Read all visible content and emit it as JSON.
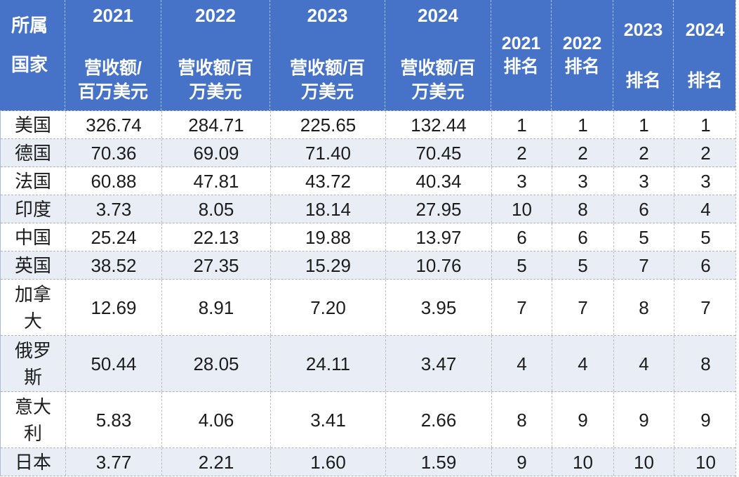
{
  "colors": {
    "header_bg": "#4673c8",
    "header_text": "#ffffff",
    "band_row_bg": "#e9edf6",
    "row_bg": "#ffffff",
    "body_text": "#1c1c1c",
    "grid_border": "#b3b3b3"
  },
  "table": {
    "header": {
      "country_label": "所属\n国家",
      "revenue_columns": [
        {
          "year": "2021",
          "unit": "营收额/\n百万美元"
        },
        {
          "year": "2022",
          "unit": "营收额/百\n万美元"
        },
        {
          "year": "2023",
          "unit": "营收额/百\n万美元"
        },
        {
          "year": "2024",
          "unit": "营收额/百\n万美元"
        }
      ],
      "rank_columns": [
        {
          "year": "2021",
          "label": "排名"
        },
        {
          "year": "2022",
          "label": "排名"
        },
        {
          "year": "2023",
          "label": "排名"
        },
        {
          "year": "2024",
          "label": "排名"
        }
      ]
    },
    "rows": [
      {
        "country": "美国",
        "revenue": [
          "326.74",
          "284.71",
          "225.65",
          "132.44"
        ],
        "rank": [
          "1",
          "1",
          "1",
          "1"
        ],
        "tall": false
      },
      {
        "country": "德国",
        "revenue": [
          "70.36",
          "69.09",
          "71.40",
          "70.45"
        ],
        "rank": [
          "2",
          "2",
          "2",
          "2"
        ],
        "tall": false
      },
      {
        "country": "法国",
        "revenue": [
          "60.88",
          "47.81",
          "43.72",
          "40.34"
        ],
        "rank": [
          "3",
          "3",
          "3",
          "3"
        ],
        "tall": false
      },
      {
        "country": "印度",
        "revenue": [
          "3.73",
          "8.05",
          "18.14",
          "27.95"
        ],
        "rank": [
          "10",
          "8",
          "6",
          "4"
        ],
        "tall": false
      },
      {
        "country": "中国",
        "revenue": [
          "25.24",
          "22.13",
          "19.88",
          "13.97"
        ],
        "rank": [
          "6",
          "6",
          "5",
          "5"
        ],
        "tall": false
      },
      {
        "country": "英国",
        "revenue": [
          "38.52",
          "27.35",
          "15.29",
          "10.76"
        ],
        "rank": [
          "5",
          "5",
          "7",
          "6"
        ],
        "tall": false
      },
      {
        "country": "加拿\n大",
        "revenue": [
          "12.69",
          "8.91",
          "7.20",
          "3.95"
        ],
        "rank": [
          "7",
          "7",
          "8",
          "7"
        ],
        "tall": true
      },
      {
        "country": "俄罗\n斯",
        "revenue": [
          "50.44",
          "28.05",
          "24.11",
          "3.47"
        ],
        "rank": [
          "4",
          "4",
          "4",
          "8"
        ],
        "tall": true
      },
      {
        "country": "意大\n利",
        "revenue": [
          "5.83",
          "4.06",
          "3.41",
          "2.66"
        ],
        "rank": [
          "8",
          "9",
          "9",
          "9"
        ],
        "tall": true
      },
      {
        "country": "日本",
        "revenue": [
          "3.77",
          "2.21",
          "1.60",
          "1.59"
        ],
        "rank": [
          "9",
          "10",
          "10",
          "10"
        ],
        "tall": false
      }
    ]
  },
  "chart_data": {
    "type": "table",
    "title": "",
    "columns": [
      "所属国家",
      "2021 营收额/百万美元",
      "2022 营收额/百万美元",
      "2023 营收额/百万美元",
      "2024 营收额/百万美元",
      "2021排名",
      "2022排名",
      "2023排名",
      "2024排名"
    ],
    "rows": [
      [
        "美国",
        326.74,
        284.71,
        225.65,
        132.44,
        1,
        1,
        1,
        1
      ],
      [
        "德国",
        70.36,
        69.09,
        71.4,
        70.45,
        2,
        2,
        2,
        2
      ],
      [
        "法国",
        60.88,
        47.81,
        43.72,
        40.34,
        3,
        3,
        3,
        3
      ],
      [
        "印度",
        3.73,
        8.05,
        18.14,
        27.95,
        10,
        8,
        6,
        4
      ],
      [
        "中国",
        25.24,
        22.13,
        19.88,
        13.97,
        6,
        6,
        5,
        5
      ],
      [
        "英国",
        38.52,
        27.35,
        15.29,
        10.76,
        5,
        5,
        7,
        6
      ],
      [
        "加拿大",
        12.69,
        8.91,
        7.2,
        3.95,
        7,
        7,
        8,
        7
      ],
      [
        "俄罗斯",
        50.44,
        28.05,
        24.11,
        3.47,
        4,
        4,
        4,
        8
      ],
      [
        "意大利",
        5.83,
        4.06,
        3.41,
        2.66,
        8,
        9,
        9,
        9
      ],
      [
        "日本",
        3.77,
        2.21,
        1.6,
        1.59,
        9,
        10,
        10,
        10
      ]
    ]
  }
}
